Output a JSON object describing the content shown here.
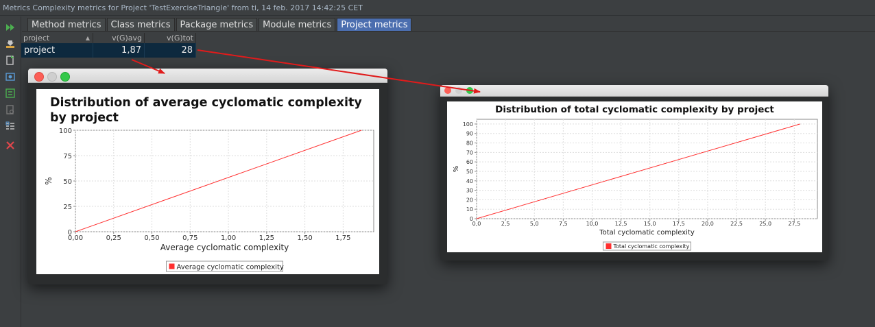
{
  "window": {
    "title": "Metrics Complexity metrics for Project 'TestExerciseTriangle' from ti, 14 feb. 2017 14:42:25 CET"
  },
  "toolbar": {
    "icons": [
      "run-icon",
      "export-icon",
      "export-file-icon",
      "snapshot-icon",
      "compare-icon",
      "pdf-icon",
      "settings-icon",
      "close-icon"
    ],
    "colors": {
      "run": "#4caf50",
      "close": "#e0474c",
      "export": "#d9a441"
    }
  },
  "tabs": [
    {
      "label": "Method metrics"
    },
    {
      "label": "Class metrics"
    },
    {
      "label": "Package metrics"
    },
    {
      "label": "Module metrics"
    },
    {
      "label": "Project metrics"
    }
  ],
  "table": {
    "headers": [
      "project",
      "v(G)avg",
      "v(G)tot"
    ],
    "rows": [
      {
        "project": "project",
        "avg": "1,87",
        "tot": "28"
      }
    ]
  },
  "chart_data": [
    {
      "type": "line",
      "title": "Distribution of average cyclomatic complexity by project",
      "xlabel": "Average cyclomatic complexity",
      "ylabel": "%",
      "xlim": [
        0,
        1.95
      ],
      "ylim": [
        0,
        100
      ],
      "xticks": [
        "0,00",
        "0,25",
        "0,50",
        "0,75",
        "1,00",
        "1,25",
        "1,50",
        "1,75"
      ],
      "xtick_values": [
        0,
        0.25,
        0.5,
        0.75,
        1.0,
        1.25,
        1.5,
        1.75
      ],
      "yticks": [
        "0",
        "25",
        "50",
        "75",
        "100"
      ],
      "ytick_values": [
        0,
        25,
        50,
        75,
        100
      ],
      "grid": true,
      "legend": "bottom",
      "series": [
        {
          "name": "Average cyclomatic complexity",
          "color": "#ff3030",
          "x": [
            0,
            1.87
          ],
          "y": [
            0,
            100
          ]
        }
      ]
    },
    {
      "type": "line",
      "title": "Distribution of total cyclomatic complexity by project",
      "xlabel": "Total cyclomatic complexity",
      "ylabel": "%",
      "xlim": [
        0,
        29.5
      ],
      "ylim": [
        0,
        105
      ],
      "xticks": [
        "0,0",
        "2,5",
        "5,0",
        "7,5",
        "10,0",
        "12,5",
        "15,0",
        "17,5",
        "20,0",
        "22,5",
        "25,0",
        "27,5"
      ],
      "xtick_values": [
        0,
        2.5,
        5,
        7.5,
        10,
        12.5,
        15,
        17.5,
        20,
        22.5,
        25,
        27.5
      ],
      "yticks": [
        "0",
        "10",
        "20",
        "30",
        "40",
        "50",
        "60",
        "70",
        "80",
        "90",
        "100"
      ],
      "ytick_values": [
        0,
        10,
        20,
        30,
        40,
        50,
        60,
        70,
        80,
        90,
        100
      ],
      "grid": true,
      "legend": "bottom",
      "series": [
        {
          "name": "Total cyclomatic complexity",
          "color": "#ff3030",
          "x": [
            0,
            28
          ],
          "y": [
            0,
            100
          ]
        }
      ]
    }
  ],
  "annotations": {
    "arrow_color": "#e01b1b"
  }
}
